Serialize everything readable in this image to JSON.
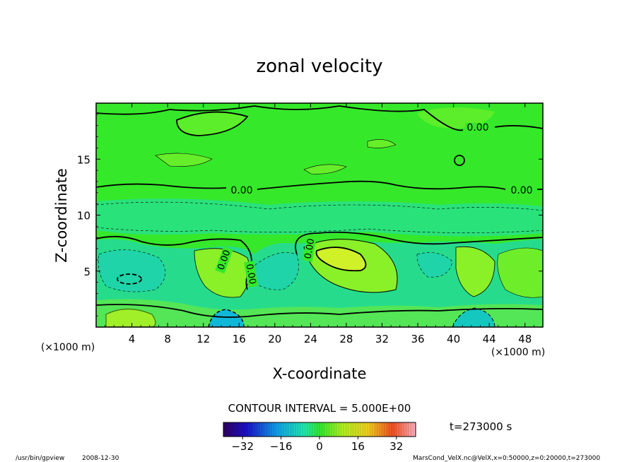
{
  "chart_data": {
    "type": "heatmap",
    "title": "zonal velocity",
    "xlabel": "X-coordinate",
    "ylabel": "Z-coordinate",
    "x_unit": "(×1000 m)",
    "y_unit": "(×1000 m)",
    "xlim": [
      0,
      50
    ],
    "ylim": [
      0,
      20
    ],
    "x_ticks": [
      4,
      8,
      12,
      16,
      20,
      24,
      28,
      32,
      36,
      40,
      44,
      48
    ],
    "y_ticks": [
      5,
      10,
      15
    ],
    "contour_interval_label": "CONTOUR INTERVAL = 5.000E+00",
    "contour_label": "0.00",
    "time_label": "t=273000 s",
    "colorbar": {
      "min": -40,
      "max": 40,
      "ticks": [
        -32,
        -16,
        0,
        16,
        32
      ]
    },
    "features": [
      {
        "x": 27.5,
        "z": 6.2,
        "value": 12,
        "kind": "max"
      },
      {
        "x": 14.5,
        "z": 0.5,
        "value": -16,
        "kind": "min"
      },
      {
        "x": 3.5,
        "z": 4.3,
        "value": -10,
        "kind": "min"
      },
      {
        "x": 42.5,
        "z": 0.4,
        "value": -12,
        "kind": "min"
      }
    ]
  },
  "footer": {
    "program": "/usr/bin/gpview",
    "date": "2008-12-30",
    "source": "MarsCond_VelX.nc@VelX,x=0:50000,z=0:20000,t=273000"
  },
  "colors": {
    "background": "#36e82a",
    "negative": "#1fd8a0",
    "positive": "#b8f020"
  }
}
